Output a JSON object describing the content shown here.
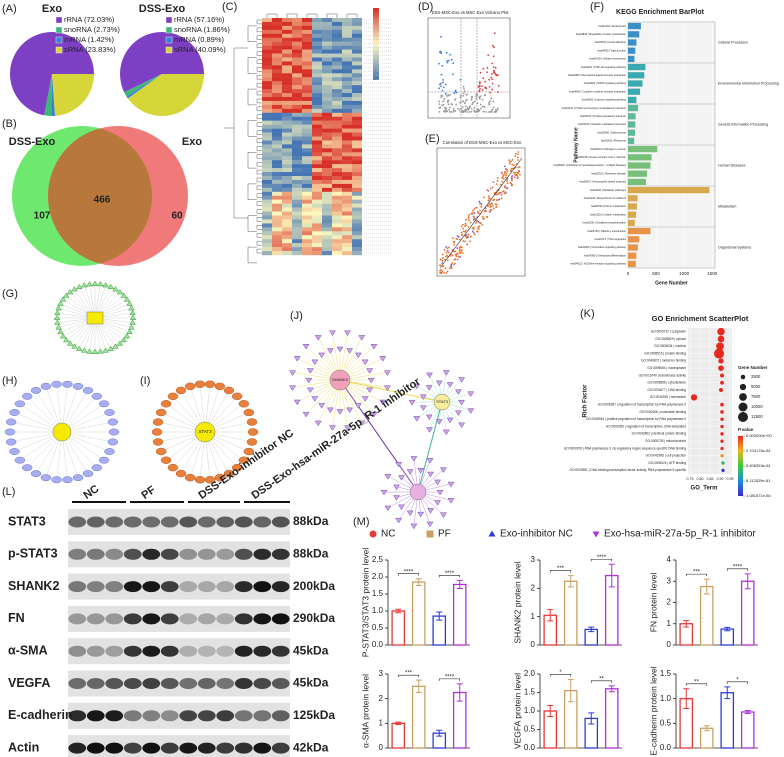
{
  "panel_labels": [
    "(A)",
    "(B)",
    "(C)",
    "(D)",
    "(E)",
    "(F)",
    "(G)",
    "(H)",
    "(I)",
    "(J)",
    "(K)",
    "(L)",
    "(M)"
  ],
  "pies": [
    {
      "title": "Exo",
      "slices": [
        {
          "label": "rRNA (72.03%)",
          "value": 72.03,
          "color": "#7d3fc4"
        },
        {
          "label": "snoRNA (2.73%)",
          "value": 2.73,
          "color": "#3cb878"
        },
        {
          "label": "mRNA (1.42%)",
          "value": 1.42,
          "color": "#3d7fd6"
        },
        {
          "label": "sRNA (23.83%)",
          "value": 23.83,
          "color": "#d6d63a"
        }
      ]
    },
    {
      "title": "DSS-Exo",
      "slices": [
        {
          "label": "rRNA (57.16%)",
          "value": 57.16,
          "color": "#7d3fc4"
        },
        {
          "label": "snoRNA (1.86%)",
          "value": 1.86,
          "color": "#3cb878"
        },
        {
          "label": "mRNA (0.89%)",
          "value": 0.89,
          "color": "#3d7fd6"
        },
        {
          "label": "sRNA (40.09%)",
          "value": 40.09,
          "color": "#d6d63a"
        }
      ]
    }
  ],
  "venn": {
    "sets": [
      "DSS-Exo",
      "Exo"
    ],
    "counts": [
      "107",
      "466",
      "60"
    ]
  },
  "volcano": {
    "title": "DSS-MSC-Exo vs MSC-Exo Volcano Plot"
  },
  "correlation": {
    "title": "Correlation of DSS-MSC-Exo vs MSC-Exo"
  },
  "kegg": {
    "title": "KEGG Enrichment BarPlot",
    "xlabel": "Gene Number",
    "ylabel": "Pathway Name",
    "xlim": [
      0,
      1550
    ],
    "xticks": [
      0,
      500,
      1000,
      1500
    ],
    "groups": [
      {
        "name": "Cellular Processes",
        "color": "#3b8fc6",
        "categories": [
          "hsa04144 | Endocytosis",
          "hsa04810 | Regulation of actin cytoskeleton",
          "hsa04510 | Focal adhesion",
          "hsa04530 | Tight junction",
          "hsa04218 | Cellular senescence"
        ],
        "values": [
          230,
          200,
          150,
          130,
          115
        ]
      },
      {
        "name": "Environmental Information Processing",
        "color": "#3aa9b0",
        "categories": [
          "hsa04151 | PI3K-Akt signaling pathway",
          "hsa04080 | Neuroactive ligand-receptor interaction",
          "hsa04010 | MAPK signaling pathway",
          "hsa04060 | Cytokine-cytokine receptor interaction",
          "hsa04020 | Calcium signaling pathway"
        ],
        "values": [
          310,
          290,
          260,
          215,
          150
        ]
      },
      {
        "name": "Genetic Information Processing",
        "color": "#5fb89c",
        "categories": [
          "hsa04141 | Protein processing in endoplasmic reticulum",
          "hsa03013 | Nucleocytoplasmic transport",
          "hsa04120 | Ubiquitin mediated proteolysis",
          "hsa03040 | Spliceosome",
          "hsa03010 | Ribosome"
        ],
        "values": [
          180,
          135,
          130,
          125,
          110
        ]
      },
      {
        "name": "Human Diseases",
        "color": "#78c07a",
        "categories": [
          "hsa05200 | Pathways in cancer",
          "hsa05168 | Herpes simplex virus 1 infection",
          "hsa05022 | Pathways of neurodegeneration - multiple diseases",
          "hsa05010 | Alzheimer disease",
          "hsa05014 | Amyotrophic lateral sclerosis"
        ],
        "values": [
          520,
          420,
          400,
          340,
          320
        ]
      },
      {
        "name": "Metabolism",
        "color": "#d8a84c",
        "categories": [
          "hsa01100 | Metabolic pathways",
          "hsa01240 | Biosynthesis of cofactors",
          "hsa00230 | Purine metabolism",
          "hsa01200 | Carbon metabolism",
          "hsa00190 | Oxidative phosphorylation"
        ],
        "values": [
          1450,
          170,
          160,
          145,
          120
        ]
      },
      {
        "name": "Organismal Systems",
        "color": "#e8934a",
        "categories": [
          "hsa04740 | Olfactory transduction",
          "hsa04714 | Thermogenesis",
          "hsa04062 | Chemokine signaling pathway",
          "hsa04380 | Osteoclast differentiation",
          "hsa04621 | NOD-like receptor signaling pathway"
        ],
        "values": [
          400,
          200,
          175,
          150,
          140
        ]
      }
    ]
  },
  "go": {
    "title": "GO Enrichment ScatterPlot",
    "xlabel": "GO_Term",
    "ylabel": "Rich Factor",
    "xlim": [
      0.74,
      0.96
    ],
    "xticks": [
      0.75,
      {
        "value": 0.8,
        "label": "0.80"
      },
      0.85,
      {
        "value": 0.9,
        "label": "0.90"
      },
      0.95
    ],
    "terms": [
      "GO:0005737 | cytoplasm",
      "GO:0005829 | cytosol",
      "GO:0005634 | nucleus",
      "GO:0005515 | protein binding",
      "GO:0046872 | metal ion binding",
      "GO:0005654 | nucleoplasm",
      "GO:0016740 | transferase activity",
      "GO:0005856 | cytoskeleton",
      "GO:0003677 | DNA binding",
      "GO:0016020 | membrane",
      "GO:0006357 | regulation of transcription by RNA polymerase II",
      "GO:0000166 | nucleotide binding",
      "GO:0045944 | positive regulation of transcription by RNA polymerase II",
      "GO:0006355 | regulation of transcription, DNA-templated",
      "GO:0042802 | identical protein binding",
      "GO:0005739 | mitochondrion",
      "GO:0000978 | RNA polymerase II cis-regulatory region sequence-specific DNA binding",
      "GO:0042995 | cell projection",
      "GO:0005524 | ATP binding",
      "GO:0000981 | DNA-binding transcription factor activity, RNA polymerase II-specific"
    ],
    "rich": [
      0.905,
      0.905,
      0.9,
      0.895,
      0.905,
      0.905,
      0.91,
      0.91,
      0.905,
      0.77,
      0.91,
      0.91,
      0.91,
      0.91,
      0.91,
      0.91,
      0.91,
      0.91,
      0.915,
      0.915
    ],
    "genes": [
      7000,
      5500,
      7500,
      12500,
      3500,
      4000,
      2000,
      1800,
      2000,
      5000,
      1700,
      1600,
      1500,
      1500,
      1500,
      1400,
      1300,
      1300,
      1500,
      1300
    ],
    "pvalues": [
      0,
      0,
      0,
      0,
      0,
      0,
      0,
      0,
      0,
      0,
      0,
      0,
      0,
      0,
      0,
      0,
      0,
      2e-81,
      6e-81,
      1.081671e-80
    ],
    "size_legend": {
      "title": "Gene Number",
      "ticks": [
        2500,
        5000,
        7500,
        10000,
        12500
      ]
    },
    "color_legend": {
      "title": "P.value",
      "ticks": [
        {
          "value": 0,
          "label": "0.000000e+00"
        },
        {
          "value": 2.704176e-81,
          "label": "2.704176e-81"
        },
        {
          "value": 5.408353e-81,
          "label": "5.408353e-81"
        },
        {
          "value": 8.112529e-81,
          "label": "8.112529e-81"
        },
        {
          "value": 1.081671e-80,
          "label": "1.081671e-80"
        }
      ],
      "colors": [
        "#e8281e",
        "#f0b41e",
        "#3cc83c",
        "#1e8cdc",
        "#3c28c8"
      ]
    }
  },
  "networks": {
    "I_center": "STAT3",
    "J_hubs": [
      "SHANK2",
      "STAT3"
    ]
  },
  "western": {
    "groups": [
      "NC",
      "PF",
      "DSS-Exo-inhibitor NC",
      "DSS-Exo-hsa-miR-27a-5p_R-1 inhibitor"
    ],
    "rows": [
      {
        "protein": "STAT3",
        "size": "88kDa"
      },
      {
        "protein": "p-STAT3",
        "size": "88kDa"
      },
      {
        "protein": "SHANK2",
        "size": "200kDa"
      },
      {
        "protein": "FN",
        "size": "290kDa"
      },
      {
        "protein": "α-SMA",
        "size": "45kDa"
      },
      {
        "protein": "VEGFA",
        "size": "45kDa"
      },
      {
        "protein": "E-cadherin",
        "size": "125kDa"
      },
      {
        "protein": "Actin",
        "size": "42kDa"
      }
    ]
  },
  "quant": {
    "groups": [
      {
        "name": "NC",
        "color": "#e53935",
        "marker": "circle"
      },
      {
        "name": "PF",
        "color": "#c9a063",
        "marker": "square"
      },
      {
        "name": "Exo-inhibitor NC",
        "color": "#2a3bd6",
        "marker": "triangle"
      },
      {
        "name": "Exo-hsa-miR-27a-5p_R-1 inhibitor",
        "color": "#b030d8",
        "marker": "triangle-down"
      }
    ],
    "charts": [
      {
        "ylabel": "P-STAT3/STAT3 protein level",
        "ylim": [
          0,
          2.5
        ],
        "yticks": [
          {
            "value": 0,
            "label": "0.0"
          },
          0.5,
          {
            "value": 1,
            "label": "1.0"
          },
          1.5,
          {
            "value": 2,
            "label": "2.0"
          },
          2.5
        ],
        "values": [
          1.0,
          1.85,
          0.85,
          1.78
        ],
        "errors": [
          0.05,
          0.1,
          0.12,
          0.12
        ],
        "significance": [
          "****",
          "****"
        ]
      },
      {
        "ylabel": "SHANK2 protein level",
        "ylim": [
          0,
          3
        ],
        "yticks": [
          0,
          1,
          2,
          3
        ],
        "values": [
          1.05,
          2.25,
          0.55,
          2.45
        ],
        "errors": [
          0.2,
          0.2,
          0.08,
          0.4
        ],
        "significance": [
          "***",
          "****"
        ]
      },
      {
        "ylabel": "FN protein level",
        "ylim": [
          0,
          4
        ],
        "yticks": [
          0,
          1,
          2,
          3,
          4
        ],
        "values": [
          1.0,
          2.75,
          0.75,
          3.0
        ],
        "errors": [
          0.15,
          0.35,
          0.08,
          0.35
        ],
        "significance": [
          "***",
          "****"
        ]
      },
      {
        "ylabel": "α-SMA protein level",
        "ylim": [
          0,
          3
        ],
        "yticks": [
          0,
          1,
          2,
          3
        ],
        "values": [
          1.0,
          2.5,
          0.6,
          2.25
        ],
        "errors": [
          0.05,
          0.25,
          0.12,
          0.35
        ],
        "significance": [
          "***",
          "****"
        ]
      },
      {
        "ylabel": "VEGFA protein level",
        "ylim": [
          0,
          2
        ],
        "yticks": [
          {
            "value": 0,
            "label": "0.0"
          },
          0.5,
          {
            "value": 1,
            "label": "1.0"
          },
          1.5,
          {
            "value": 2,
            "label": "2.0"
          }
        ],
        "values": [
          1.0,
          1.55,
          0.8,
          1.6
        ],
        "errors": [
          0.15,
          0.3,
          0.15,
          0.08
        ],
        "significance": [
          "*",
          "**"
        ]
      },
      {
        "ylabel": "E-cadherin protein level",
        "ylim": [
          0,
          1.5
        ],
        "yticks": [
          {
            "value": 0,
            "label": "0.0"
          },
          0.5,
          {
            "value": 1,
            "label": "1.0"
          },
          1.5
        ],
        "values": [
          1.0,
          0.4,
          1.12,
          0.73
        ],
        "errors": [
          0.2,
          0.05,
          0.12,
          0.03
        ],
        "significance": [
          "**",
          "*"
        ]
      }
    ]
  }
}
